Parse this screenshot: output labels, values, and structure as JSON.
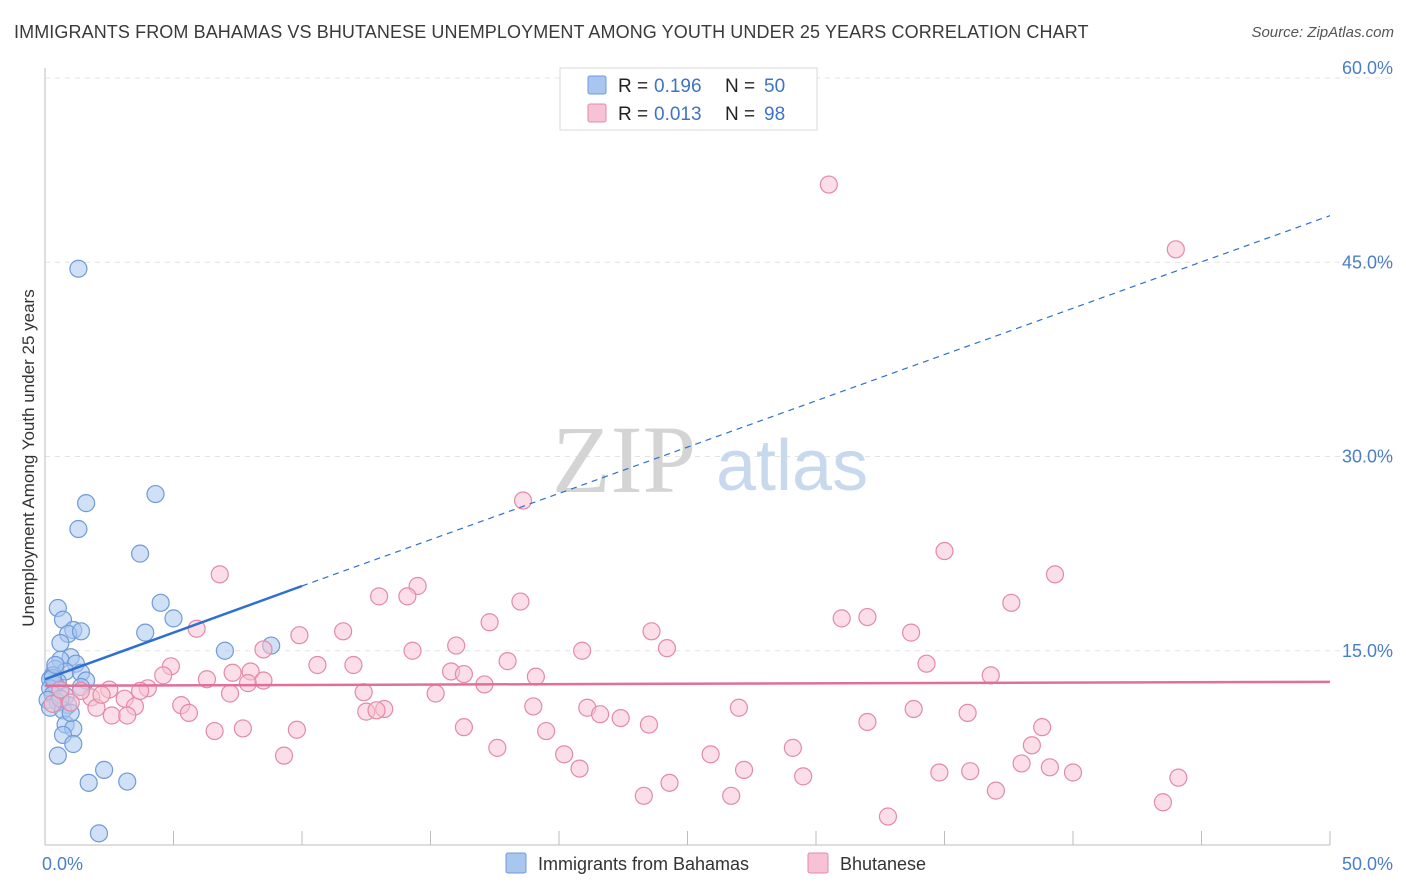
{
  "title": "IMMIGRANTS FROM BAHAMAS VS BHUTANESE UNEMPLOYMENT AMONG YOUTH UNDER 25 YEARS CORRELATION CHART",
  "source": "Source: ZipAtlas.com",
  "watermark": {
    "part1": "ZIP",
    "part2": "atlas"
  },
  "chart_data": {
    "type": "scatter",
    "ylabel": "Unemployment Among Youth under 25 years",
    "xlim": [
      0,
      50
    ],
    "ylim": [
      0,
      60
    ],
    "x_ticks": [
      {
        "value": 0,
        "label": "0.0%"
      },
      {
        "value": 50,
        "label": "50.0%"
      }
    ],
    "y_ticks": [
      {
        "value": 15,
        "label": "15.0%"
      },
      {
        "value": 30,
        "label": "30.0%"
      },
      {
        "value": 45,
        "label": "45.0%"
      },
      {
        "value": 60,
        "label": "60.0%"
      }
    ],
    "stats": [
      {
        "r_label": "R =",
        "r": "0.196",
        "n_label": "N =",
        "n": "50",
        "color": "#a9c6ee",
        "stroke": "#6f9bd8"
      },
      {
        "r_label": "R =",
        "r": "0.013",
        "n_label": "N =",
        "n": "98",
        "color": "#f7c2d3",
        "stroke": "#e38aa8"
      }
    ],
    "series": [
      {
        "name": "Immigrants from Bahamas",
        "color": "#a9c6ee",
        "stroke": "#6f9bd8",
        "trend": {
          "color": "#2f6fd0",
          "x0": 0,
          "y0": 12.8,
          "x_solid_end": 10,
          "y_solid_end": 20,
          "x_end": 50,
          "y_end": 48.6
        },
        "points": [
          [
            1.3,
            44.5
          ],
          [
            1.6,
            26.4
          ],
          [
            4.3,
            27.1
          ],
          [
            1.3,
            24.4
          ],
          [
            3.7,
            22.5
          ],
          [
            0.5,
            18.3
          ],
          [
            4.5,
            18.7
          ],
          [
            0.7,
            17.4
          ],
          [
            5.0,
            17.5
          ],
          [
            1.1,
            16.6
          ],
          [
            0.9,
            16.3
          ],
          [
            1.4,
            16.5
          ],
          [
            3.9,
            16.4
          ],
          [
            0.6,
            15.6
          ],
          [
            8.8,
            15.4
          ],
          [
            7.0,
            15.0
          ],
          [
            1.0,
            14.5
          ],
          [
            0.6,
            14.3
          ],
          [
            1.2,
            14.0
          ],
          [
            0.4,
            13.6
          ],
          [
            0.8,
            13.4
          ],
          [
            1.4,
            13.3
          ],
          [
            0.3,
            13.1
          ],
          [
            0.2,
            12.8
          ],
          [
            0.5,
            12.6
          ],
          [
            1.6,
            12.7
          ],
          [
            0.4,
            12.4
          ],
          [
            0.2,
            12.1
          ],
          [
            0.6,
            11.9
          ],
          [
            0.3,
            11.6
          ],
          [
            0.8,
            11.5
          ],
          [
            0.1,
            11.2
          ],
          [
            0.5,
            11.0
          ],
          [
            0.9,
            10.8
          ],
          [
            0.2,
            10.6
          ],
          [
            0.7,
            10.4
          ],
          [
            0.8,
            9.3
          ],
          [
            1.1,
            9.0
          ],
          [
            0.7,
            8.5
          ],
          [
            1.1,
            7.8
          ],
          [
            0.5,
            6.9
          ],
          [
            2.3,
            5.8
          ],
          [
            1.7,
            4.8
          ],
          [
            3.2,
            4.9
          ],
          [
            2.1,
            0.9
          ],
          [
            1.4,
            12.2
          ],
          [
            0.3,
            12.9
          ],
          [
            0.6,
            11.3
          ],
          [
            1.0,
            10.2
          ],
          [
            0.4,
            13.9
          ]
        ]
      },
      {
        "name": "Bhutanese",
        "color": "#f7c2d3",
        "stroke": "#e38aa8",
        "trend": {
          "color": "#e06f9a",
          "x0": 0,
          "y0": 12.3,
          "x_end": 50,
          "y_end": 12.6
        },
        "points": [
          [
            30.5,
            51.0
          ],
          [
            44.0,
            46.0
          ],
          [
            18.6,
            26.6
          ],
          [
            35.0,
            22.7
          ],
          [
            39.3,
            20.9
          ],
          [
            6.8,
            20.9
          ],
          [
            14.5,
            20.0
          ],
          [
            13.0,
            19.2
          ],
          [
            14.1,
            19.2
          ],
          [
            18.5,
            18.8
          ],
          [
            37.6,
            18.7
          ],
          [
            31.0,
            17.5
          ],
          [
            32.0,
            17.6
          ],
          [
            17.3,
            17.2
          ],
          [
            5.9,
            16.7
          ],
          [
            11.6,
            16.5
          ],
          [
            23.6,
            16.5
          ],
          [
            9.9,
            16.2
          ],
          [
            33.7,
            16.4
          ],
          [
            16.0,
            15.4
          ],
          [
            8.5,
            15.1
          ],
          [
            20.9,
            15.0
          ],
          [
            24.2,
            15.2
          ],
          [
            14.3,
            15.0
          ],
          [
            4.9,
            13.8
          ],
          [
            10.6,
            13.9
          ],
          [
            12.0,
            13.9
          ],
          [
            18.0,
            14.2
          ],
          [
            34.3,
            14.0
          ],
          [
            7.3,
            13.3
          ],
          [
            8.0,
            13.4
          ],
          [
            15.8,
            13.4
          ],
          [
            19.1,
            13.0
          ],
          [
            36.8,
            13.1
          ],
          [
            4.6,
            13.1
          ],
          [
            7.9,
            12.5
          ],
          [
            8.5,
            12.7
          ],
          [
            6.3,
            12.8
          ],
          [
            17.1,
            12.4
          ],
          [
            2.5,
            12.0
          ],
          [
            4.0,
            12.1
          ],
          [
            12.4,
            11.8
          ],
          [
            7.2,
            11.7
          ],
          [
            15.2,
            11.7
          ],
          [
            1.8,
            11.4
          ],
          [
            3.1,
            11.3
          ],
          [
            5.3,
            10.8
          ],
          [
            16.3,
            13.2
          ],
          [
            1.4,
            11.9
          ],
          [
            19.0,
            10.7
          ],
          [
            21.1,
            10.6
          ],
          [
            13.2,
            10.5
          ],
          [
            27.0,
            10.6
          ],
          [
            33.8,
            10.5
          ],
          [
            2.0,
            10.6
          ],
          [
            3.5,
            10.7
          ],
          [
            5.6,
            10.2
          ],
          [
            12.5,
            10.3
          ],
          [
            12.9,
            10.4
          ],
          [
            21.6,
            10.1
          ],
          [
            35.9,
            10.2
          ],
          [
            2.6,
            10.0
          ],
          [
            3.2,
            10.0
          ],
          [
            22.4,
            9.8
          ],
          [
            32.0,
            9.5
          ],
          [
            38.8,
            9.1
          ],
          [
            16.3,
            9.1
          ],
          [
            6.6,
            8.8
          ],
          [
            7.7,
            9.0
          ],
          [
            9.8,
            8.9
          ],
          [
            19.5,
            8.8
          ],
          [
            23.5,
            9.3
          ],
          [
            17.6,
            7.5
          ],
          [
            29.1,
            7.5
          ],
          [
            38.4,
            7.7
          ],
          [
            20.2,
            7.0
          ],
          [
            25.9,
            7.0
          ],
          [
            9.3,
            6.9
          ],
          [
            38.0,
            6.3
          ],
          [
            39.1,
            6.0
          ],
          [
            20.8,
            5.9
          ],
          [
            27.2,
            5.8
          ],
          [
            34.8,
            5.6
          ],
          [
            36.0,
            5.7
          ],
          [
            40.0,
            5.6
          ],
          [
            29.5,
            5.3
          ],
          [
            44.1,
            5.2
          ],
          [
            24.3,
            4.8
          ],
          [
            26.7,
            3.8
          ],
          [
            37.0,
            4.2
          ],
          [
            23.3,
            3.8
          ],
          [
            43.5,
            3.3
          ],
          [
            32.8,
            2.2
          ],
          [
            0.3,
            10.9
          ],
          [
            2.2,
            11.6
          ],
          [
            0.6,
            12.0
          ],
          [
            1.0,
            11.0
          ],
          [
            3.7,
            11.9
          ]
        ]
      }
    ]
  }
}
